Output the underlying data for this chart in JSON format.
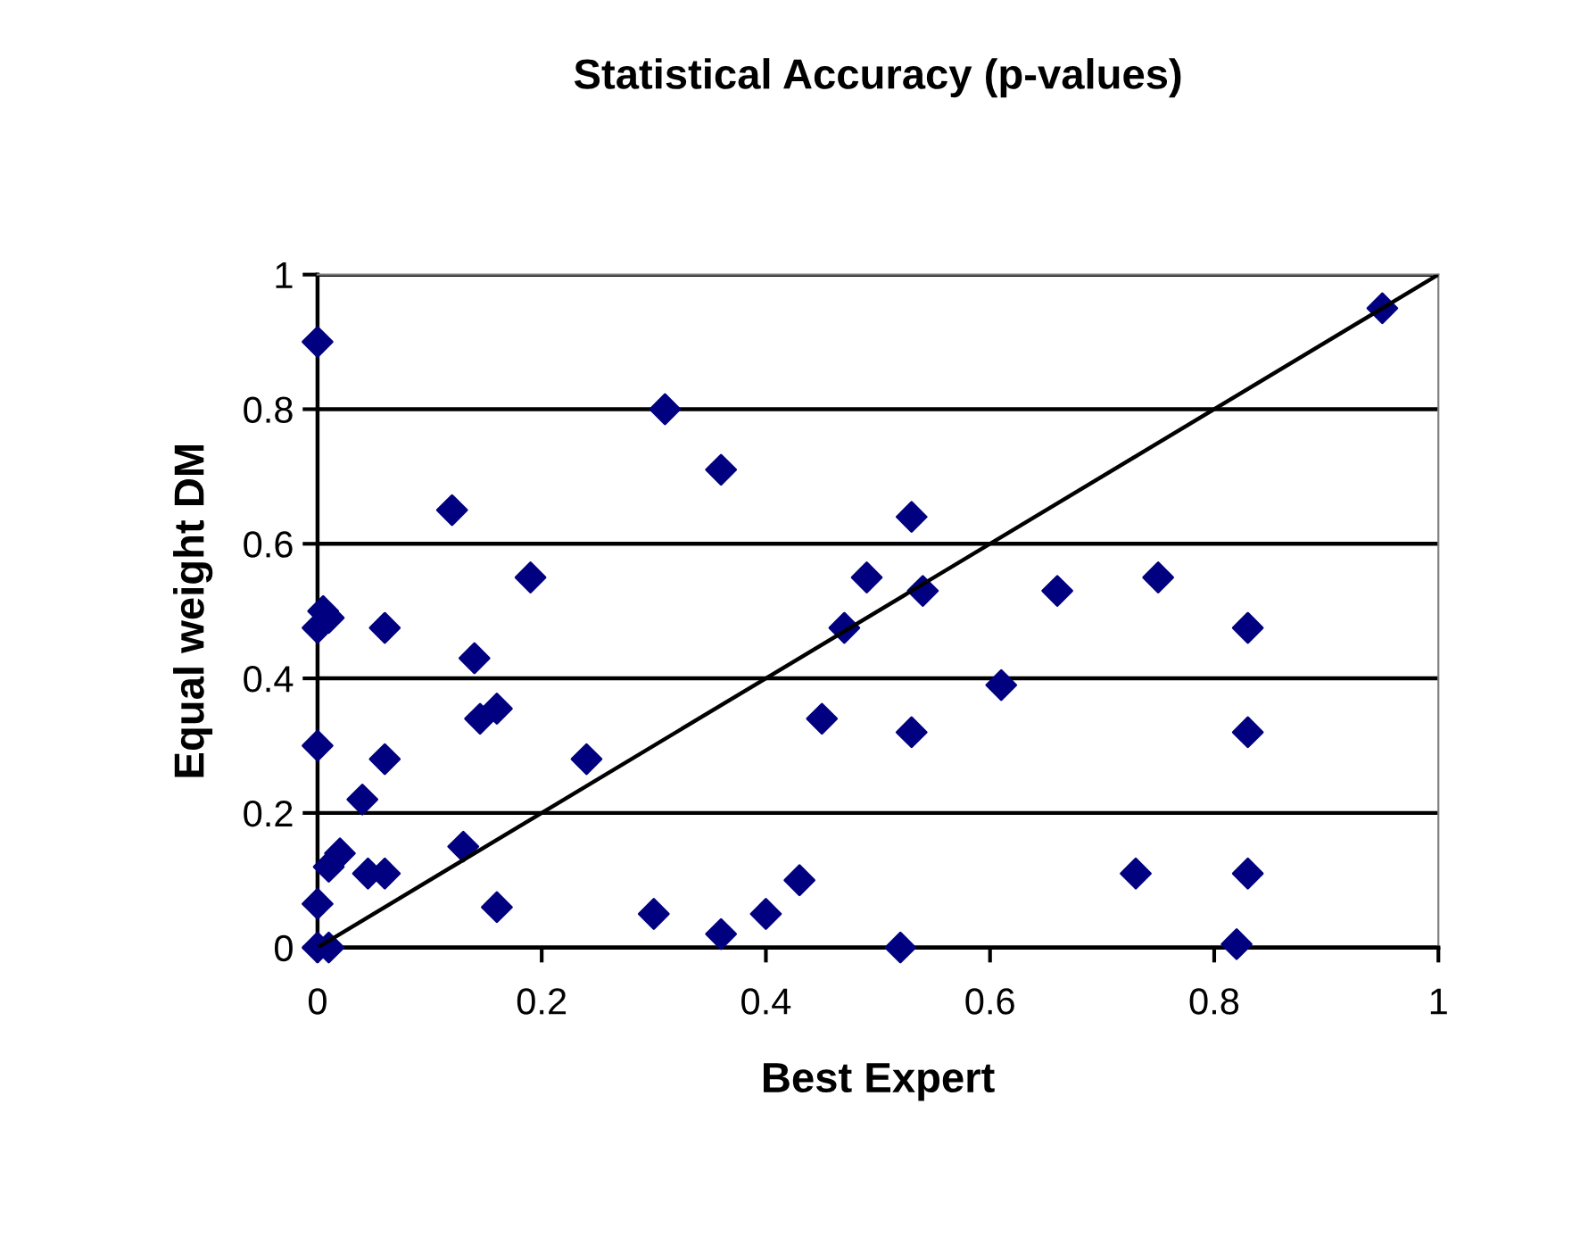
{
  "chart_data": {
    "type": "scatter",
    "title": "Statistical Accuracy (p-values)",
    "xlabel": "Best Expert",
    "ylabel": "Equal weight DM",
    "xlim": [
      0,
      1
    ],
    "ylim": [
      0,
      1
    ],
    "xticks": [
      0,
      0.2,
      0.4,
      0.6,
      0.8,
      1
    ],
    "yticks": [
      0,
      0.2,
      0.4,
      0.6,
      0.8,
      1
    ],
    "grid": "y",
    "legend": false,
    "series": [
      {
        "marker": "diamond",
        "color": "#000080",
        "x": [
          0,
          0.31,
          0.36,
          0.12,
          0.53,
          0.95,
          0.19,
          0.49,
          0.75,
          0.54,
          0.66,
          0.005,
          0.01,
          0,
          0.06,
          0.47,
          0.83,
          0.14,
          0.61,
          0.16,
          0.145,
          0.45,
          0.53,
          0.83,
          0,
          0.06,
          0.24,
          0.04,
          0.02,
          0.13,
          0.01,
          0.045,
          0.06,
          0.73,
          0.83,
          0.43,
          0,
          0.16,
          0.3,
          0.4,
          0.36,
          0.52,
          0.82,
          0,
          0.01
        ],
        "values": [
          0.9,
          0.8,
          0.71,
          0.65,
          0.64,
          0.95,
          0.55,
          0.55,
          0.55,
          0.53,
          0.53,
          0.5,
          0.49,
          0.475,
          0.475,
          0.475,
          0.475,
          0.43,
          0.39,
          0.355,
          0.34,
          0.34,
          0.32,
          0.32,
          0.3,
          0.28,
          0.28,
          0.22,
          0.14,
          0.15,
          0.12,
          0.11,
          0.11,
          0.11,
          0.11,
          0.1,
          0.065,
          0.06,
          0.05,
          0.05,
          0.02,
          0,
          0.005,
          0,
          0
        ]
      },
      {
        "type": "line",
        "marker": "none",
        "color": "#000000",
        "x": [
          0,
          1
        ],
        "values": [
          0,
          1
        ]
      }
    ]
  }
}
